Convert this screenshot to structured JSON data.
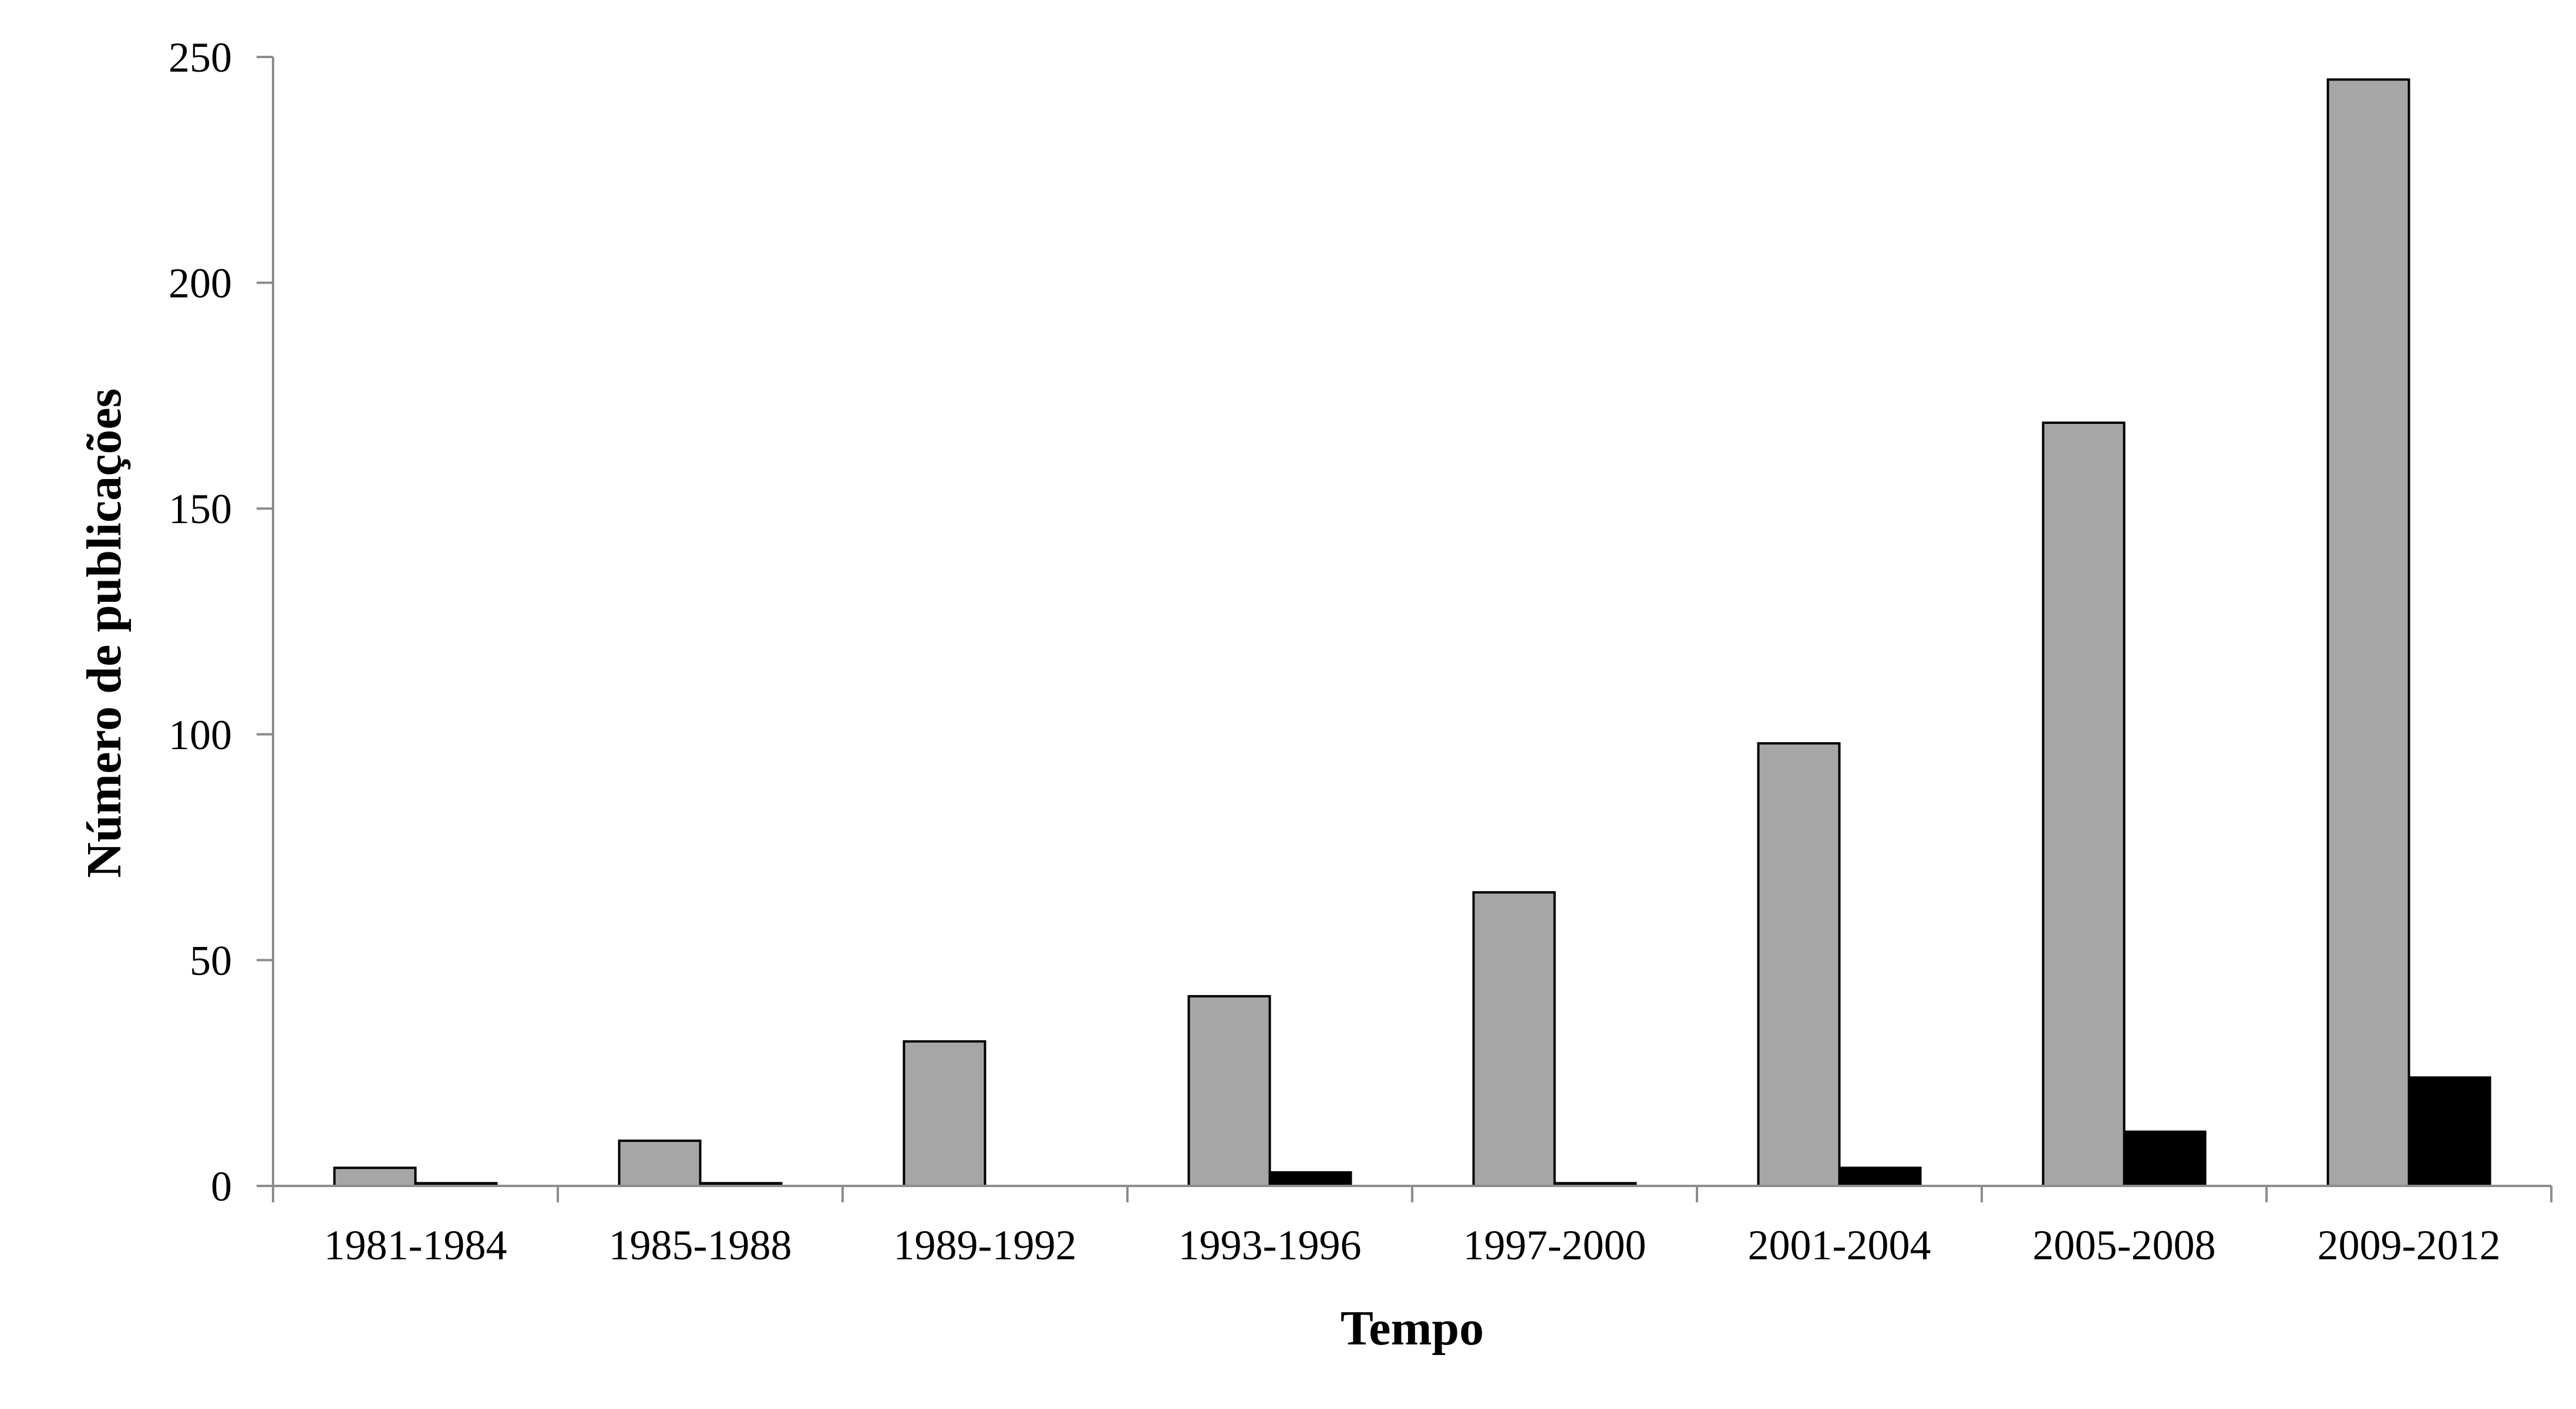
{
  "chart_data": {
    "type": "bar",
    "title": "",
    "xlabel": "Tempo",
    "ylabel": "Número de publicações",
    "ylim": [
      0,
      250
    ],
    "yticks": [
      0,
      50,
      100,
      150,
      200,
      250
    ],
    "categories": [
      "1981-1984",
      "1985-1988",
      "1989-1992",
      "1993-1996",
      "1997-2000",
      "2001-2004",
      "2005-2008",
      "2009-2012"
    ],
    "series": [
      {
        "values": [
          4,
          10,
          32,
          42,
          65,
          98,
          169,
          245
        ],
        "color": "#a6a6a6"
      },
      {
        "values": [
          0.6,
          0.6,
          0,
          3,
          0.6,
          4,
          12,
          24
        ],
        "color": "#000000"
      }
    ],
    "grid": false,
    "legend": "none"
  }
}
